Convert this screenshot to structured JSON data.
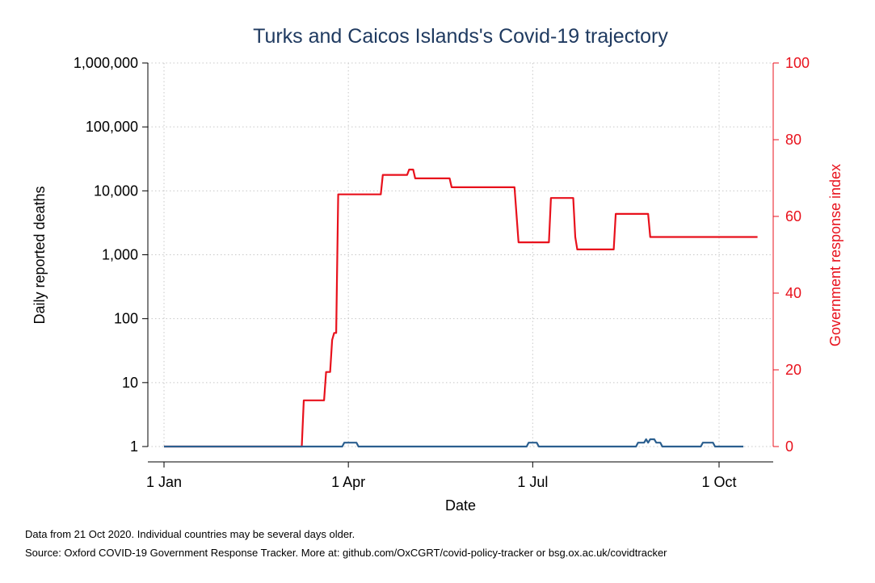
{
  "chart_data": {
    "type": "line",
    "title": "Turks and Caicos Islands's Covid-19 trajectory",
    "xlabel": "Date",
    "ylabel_left": "Daily reported deaths",
    "ylabel_right": "Government response index",
    "left_axis": {
      "scale": "log",
      "range": [
        1,
        1000000
      ],
      "ticks": [
        1,
        10,
        100,
        1000,
        10000,
        100000,
        1000000
      ],
      "tick_labels": [
        "1",
        "10",
        "100",
        "1,000",
        "10,000",
        "100,000",
        "1,000,000"
      ]
    },
    "right_axis": {
      "scale": "linear",
      "range": [
        0,
        100
      ],
      "ticks": [
        0,
        20,
        40,
        60,
        80,
        100
      ],
      "tick_labels": [
        "0",
        "20",
        "40",
        "60",
        "80",
        "100"
      ]
    },
    "x_ticks": [
      "2020-01-01",
      "2020-04-01",
      "2020-07-01",
      "2020-10-01"
    ],
    "x_tick_labels": [
      "1 Jan",
      "1 Apr",
      "1 Jul",
      "1 Oct"
    ],
    "grid": true,
    "colors": {
      "deaths": "#2b5f8f",
      "response": "#e8111c",
      "title": "#1f3a60"
    },
    "series": [
      {
        "axis": "right",
        "color": "#e8111c",
        "points": [
          [
            "2020-01-01",
            0
          ],
          [
            "2020-03-09",
            0
          ],
          [
            "2020-03-10",
            12.04
          ],
          [
            "2020-03-20",
            12.04
          ],
          [
            "2020-03-21",
            19.44
          ],
          [
            "2020-03-23",
            19.44
          ],
          [
            "2020-03-24",
            27.78
          ],
          [
            "2020-03-25",
            29.63
          ],
          [
            "2020-03-26",
            29.63
          ],
          [
            "2020-03-27",
            65.74
          ],
          [
            "2020-04-17",
            65.74
          ],
          [
            "2020-04-18",
            70.83
          ],
          [
            "2020-04-30",
            70.83
          ],
          [
            "2020-05-01",
            72.22
          ],
          [
            "2020-05-03",
            72.22
          ],
          [
            "2020-05-04",
            69.91
          ],
          [
            "2020-05-21",
            69.91
          ],
          [
            "2020-05-22",
            67.59
          ],
          [
            "2020-06-22",
            67.59
          ],
          [
            "2020-06-24",
            53.24
          ],
          [
            "2020-07-09",
            53.24
          ],
          [
            "2020-07-10",
            64.81
          ],
          [
            "2020-07-21",
            64.81
          ],
          [
            "2020-07-22",
            54.63
          ],
          [
            "2020-07-23",
            51.39
          ],
          [
            "2020-08-10",
            51.39
          ],
          [
            "2020-08-11",
            60.65
          ],
          [
            "2020-08-27",
            60.65
          ],
          [
            "2020-08-28",
            54.63
          ],
          [
            "2020-10-20",
            54.63
          ]
        ]
      },
      {
        "axis": "left",
        "color": "#2b5f8f",
        "points": [
          [
            "2020-01-01",
            1
          ],
          [
            "2020-03-29",
            1
          ],
          [
            "2020-03-30",
            1.15
          ],
          [
            "2020-04-05",
            1.15
          ],
          [
            "2020-04-06",
            1
          ],
          [
            "2020-06-28",
            1
          ],
          [
            "2020-06-29",
            1.15
          ],
          [
            "2020-07-03",
            1.15
          ],
          [
            "2020-07-04",
            1
          ],
          [
            "2020-08-21",
            1
          ],
          [
            "2020-08-22",
            1.15
          ],
          [
            "2020-08-25",
            1.15
          ],
          [
            "2020-08-26",
            1.3
          ],
          [
            "2020-08-27",
            1.15
          ],
          [
            "2020-08-28",
            1.3
          ],
          [
            "2020-08-30",
            1.3
          ],
          [
            "2020-08-31",
            1.15
          ],
          [
            "2020-09-02",
            1.15
          ],
          [
            "2020-09-03",
            1
          ],
          [
            "2020-09-22",
            1
          ],
          [
            "2020-09-23",
            1.15
          ],
          [
            "2020-09-28",
            1.15
          ],
          [
            "2020-09-29",
            1
          ],
          [
            "2020-10-13",
            1
          ]
        ]
      }
    ]
  },
  "notes": {
    "line1": "Data from 21 Oct 2020. Individual countries may be several days older.",
    "line2": "Source: Oxford COVID-19 Government Response Tracker. More at: github.com/OxCGRT/covid-policy-tracker or bsg.ox.ac.uk/covidtracker"
  }
}
